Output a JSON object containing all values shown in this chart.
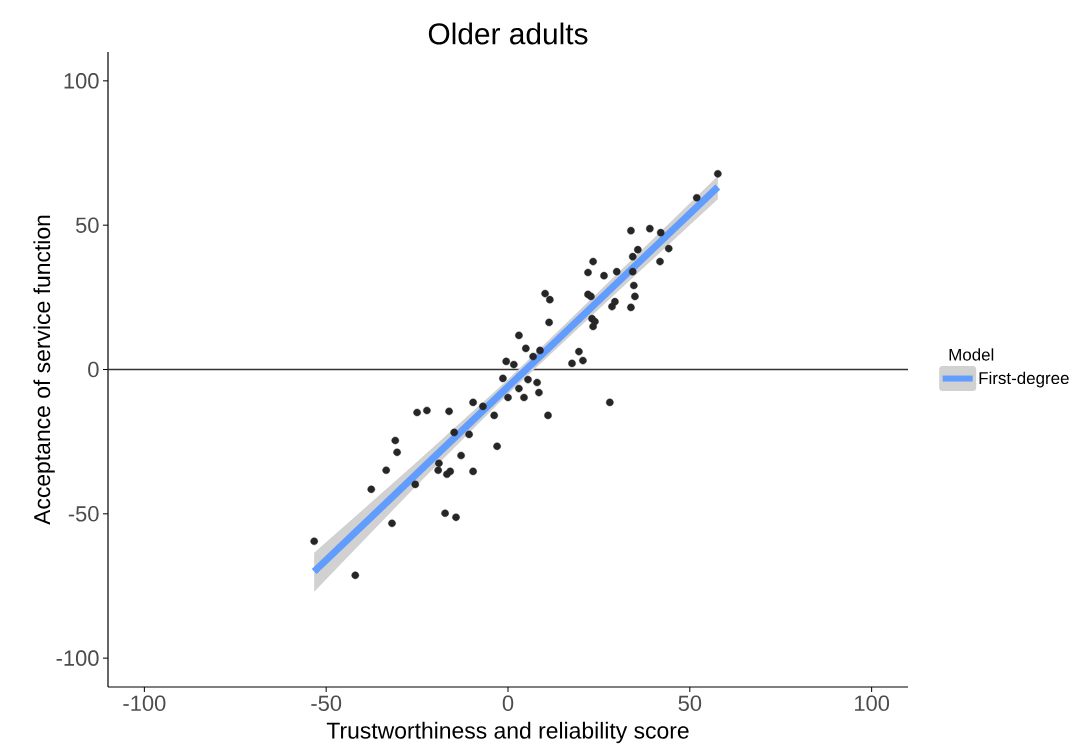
{
  "chart_data": {
    "type": "scatter",
    "title": "Older adults",
    "xlabel": "Trustworthiness and reliability score",
    "ylabel": "Acceptance of service function",
    "legend_title": "Model",
    "legend": "right",
    "grid": false,
    "xlim": [
      -110,
      110
    ],
    "ylim": [
      -110,
      110
    ],
    "xticks": [
      -100,
      -50,
      0,
      50,
      100
    ],
    "yticks": [
      -100,
      -50,
      0,
      50,
      100
    ],
    "ref_lines": [
      {
        "axis": "y",
        "value": 0,
        "color": "#333333"
      }
    ],
    "series": [
      {
        "color": "#262626",
        "x": [
          -53.3,
          -42.0,
          -37.6,
          -31.9,
          -33.5,
          -31.0,
          -30.5,
          -25.0,
          -22.3,
          -17.3,
          -14.3,
          -16.2,
          -9.6,
          -14.8,
          -10.7,
          -12.9,
          -19.0,
          -19.2,
          -16.8,
          -15.9,
          -9.6,
          -25.5,
          -3.0,
          -3.8,
          -6.9,
          0.0,
          4.4,
          3.0,
          -1.4,
          -0.5,
          1.6,
          57.7,
          51.9,
          33.8,
          39.0,
          42.0,
          44.2,
          41.8,
          35.7,
          34.3,
          34.3,
          29.9,
          26.4,
          22.0,
          23.4,
          34.6,
          34.9,
          33.8,
          28.6,
          29.4,
          22.0,
          22.8,
          23.1,
          23.4,
          23.9,
          10.2,
          11.5,
          11.3,
          3.0,
          4.9,
          19.5,
          20.6,
          17.6,
          8.8,
          6.9,
          5.5,
          8.0,
          8.5,
          11.0,
          28.0
        ],
        "values": [
          -59.5,
          -71.3,
          -41.5,
          -53.3,
          -34.9,
          -24.6,
          -28.7,
          -14.9,
          -14.2,
          -49.8,
          -51.2,
          -14.5,
          -11.4,
          -21.8,
          -22.5,
          -29.8,
          -32.5,
          -34.9,
          -36.3,
          -35.3,
          -35.3,
          -39.8,
          -26.6,
          -15.9,
          -12.8,
          -9.7,
          -9.7,
          -6.6,
          -3.1,
          2.8,
          1.7,
          67.8,
          59.5,
          48.1,
          48.8,
          47.4,
          41.9,
          37.4,
          41.5,
          39.1,
          33.9,
          33.9,
          32.5,
          33.6,
          37.4,
          29.1,
          25.3,
          21.5,
          21.8,
          23.5,
          26.0,
          25.3,
          17.6,
          14.9,
          16.6,
          26.3,
          24.2,
          16.3,
          11.8,
          7.3,
          6.2,
          3.1,
          2.1,
          6.6,
          4.5,
          -3.5,
          -4.5,
          -8.0,
          -15.9,
          -11.4
        ]
      },
      {
        "type": "line",
        "name": "First-degree",
        "color": "#619cff",
        "x": [
          -53.3,
          -25,
          0,
          25,
          57.7
        ],
        "values": [
          -70.0,
          -36.0,
          -6.0,
          24.0,
          63.2
        ],
        "lower": [
          -77.0,
          -40.0,
          -8.5,
          21.0,
          59.0
        ],
        "upper": [
          -63.5,
          -32.0,
          -3.5,
          27.0,
          67.0
        ]
      }
    ]
  }
}
